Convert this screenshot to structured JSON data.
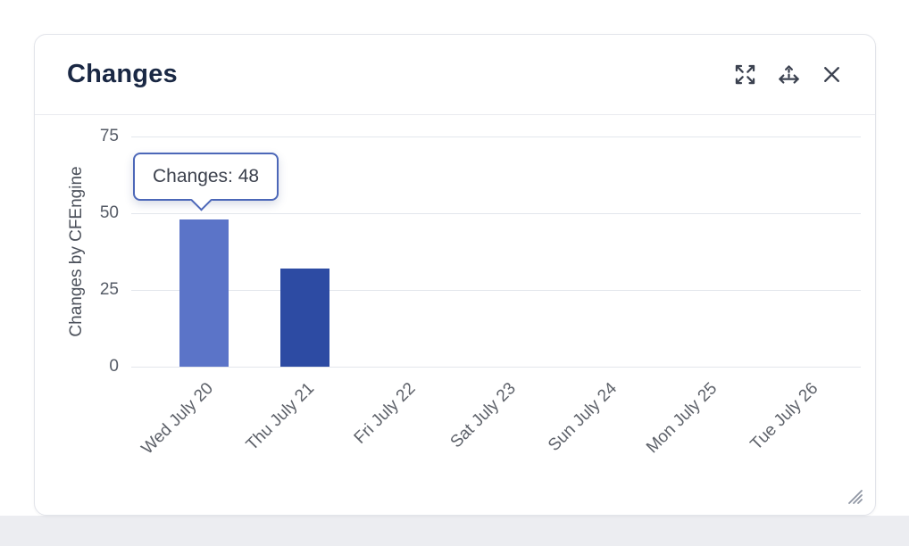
{
  "widget": {
    "title": "Changes",
    "controls": {
      "expand_icon": "expand-icon",
      "move_icon": "move-icon",
      "close_icon": "close-icon"
    }
  },
  "chart_data": {
    "type": "bar",
    "title": "",
    "xlabel": "",
    "ylabel": "Changes by CFEngine",
    "categories": [
      "Wed July 20",
      "Thu July 21",
      "Fri July 22",
      "Sat July 23",
      "Sun July 24",
      "Mon July 25",
      "Tue July 26"
    ],
    "values": [
      48,
      32,
      0,
      0,
      0,
      0,
      0
    ],
    "yticks": [
      0,
      25,
      50,
      75
    ],
    "ylim": [
      0,
      75
    ],
    "grid": true,
    "legend": "none",
    "bar_color_default": "#2d4ba3",
    "bar_color_highlight": "#5b74c8",
    "highlight_index": 0,
    "tooltip": {
      "text": "Changes: 48",
      "category_index": 0
    }
  },
  "colors": {
    "tooltip_border": "#4c67b8",
    "gridline": "#e3e6ec",
    "title_text": "#1a2844"
  }
}
